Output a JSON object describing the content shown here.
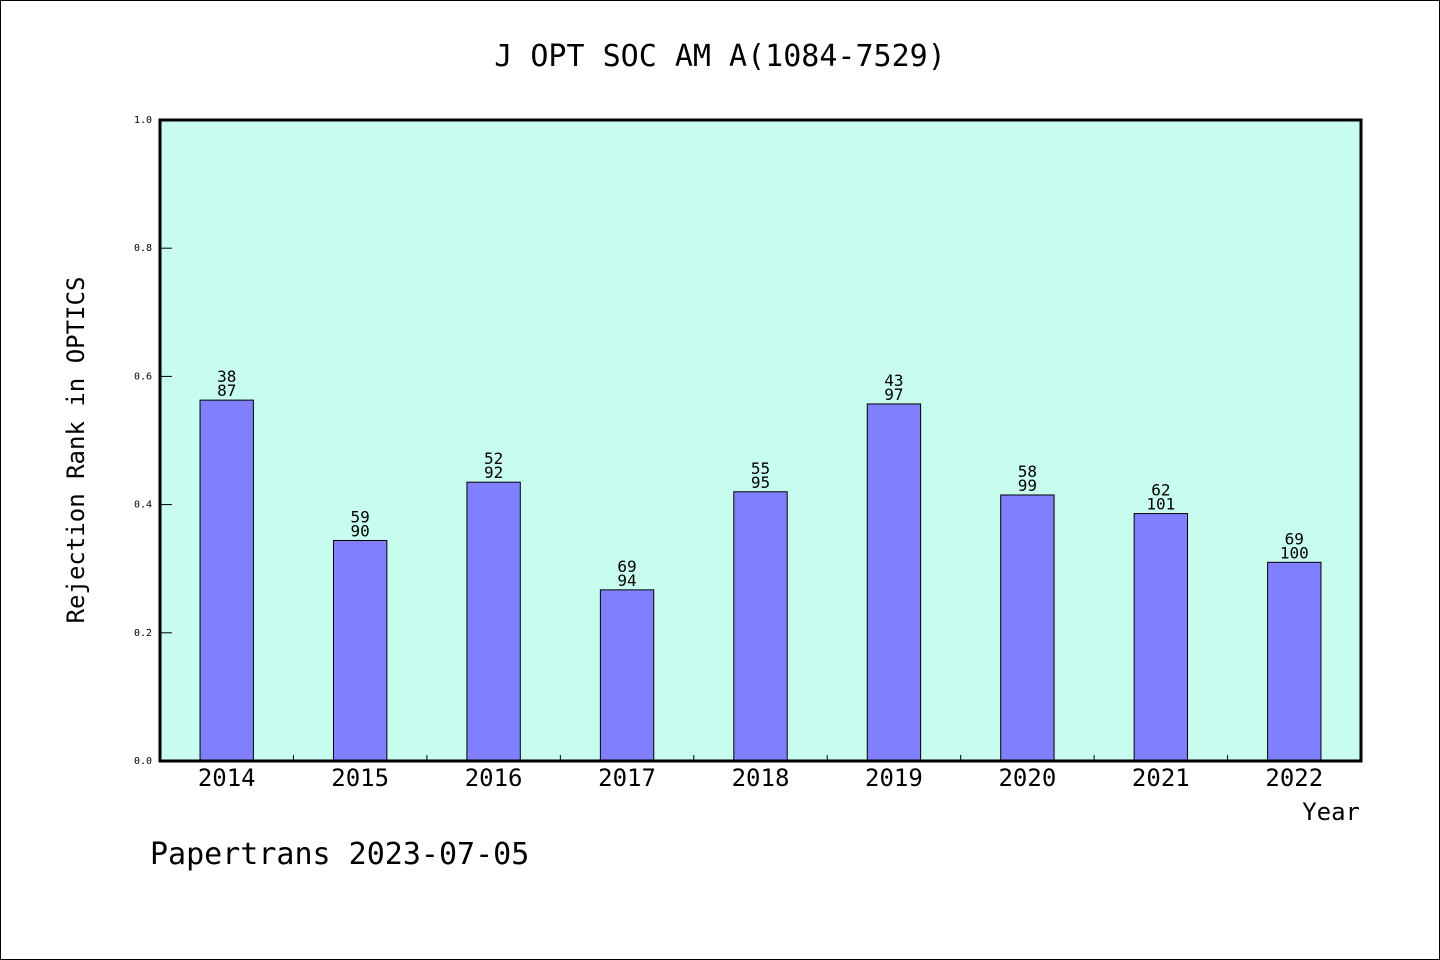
{
  "chart_data": {
    "type": "bar",
    "title": "J OPT SOC AM A(1084-7529)",
    "xlabel": "Year",
    "ylabel": "Rejection Rank in OPTICS",
    "ylim": [
      0,
      1.0
    ],
    "yticks": [
      "0.0",
      "0.2",
      "0.4",
      "0.6",
      "0.8",
      "1.0"
    ],
    "categories": [
      "2014",
      "2015",
      "2016",
      "2017",
      "2018",
      "2019",
      "2020",
      "2021",
      "2022"
    ],
    "values": [
      0.563,
      0.344,
      0.435,
      0.267,
      0.42,
      0.557,
      0.415,
      0.386,
      0.31
    ],
    "rank": [
      "38",
      "59",
      "52",
      "69",
      "55",
      "43",
      "58",
      "62",
      "69"
    ],
    "total": [
      "87",
      "90",
      "92",
      "94",
      "95",
      "97",
      "99",
      "101",
      "100"
    ],
    "grid": false,
    "legend": "none",
    "colors": {
      "plot_bg": "#c8fcee",
      "bar": "#8080ff",
      "bar_edge": "#000000"
    }
  },
  "footer": "Papertrans 2023-07-05"
}
